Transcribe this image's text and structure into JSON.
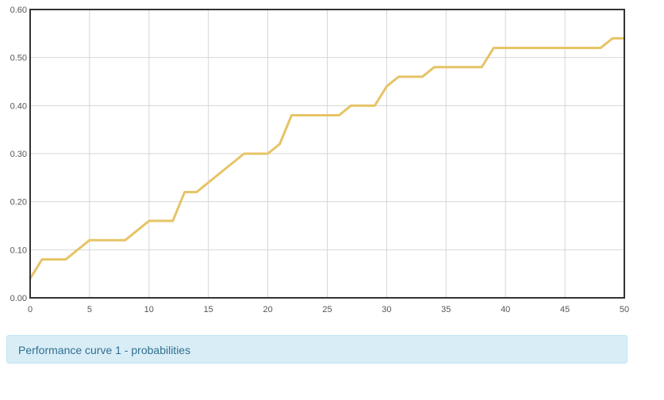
{
  "caption": "Performance curve 1 - probabilities",
  "chart_data": {
    "type": "line",
    "title": "",
    "xlabel": "",
    "ylabel": "",
    "xlim": [
      0,
      50
    ],
    "ylim": [
      0,
      0.6
    ],
    "grid": true,
    "x_ticks": [
      "0",
      "5",
      "10",
      "15",
      "20",
      "25",
      "30",
      "35",
      "40",
      "45",
      "50"
    ],
    "y_ticks": [
      "0.00",
      "0.10",
      "0.20",
      "0.30",
      "0.40",
      "0.50",
      "0.60"
    ],
    "series": [
      {
        "color": "#e6c466",
        "x": [
          0,
          1,
          2,
          3,
          4,
          5,
          6,
          7,
          8,
          9,
          10,
          11,
          12,
          13,
          14,
          15,
          16,
          17,
          18,
          19,
          20,
          21,
          22,
          23,
          24,
          25,
          26,
          27,
          28,
          29,
          30,
          31,
          32,
          33,
          34,
          35,
          36,
          37,
          38,
          39,
          40,
          41,
          42,
          43,
          44,
          45,
          46,
          47,
          48,
          49,
          50
        ],
        "y": [
          0.04,
          0.08,
          0.08,
          0.08,
          0.1,
          0.12,
          0.12,
          0.12,
          0.12,
          0.14,
          0.16,
          0.16,
          0.16,
          0.22,
          0.22,
          0.24,
          0.26,
          0.28,
          0.3,
          0.3,
          0.3,
          0.32,
          0.38,
          0.38,
          0.38,
          0.38,
          0.38,
          0.4,
          0.4,
          0.4,
          0.44,
          0.46,
          0.46,
          0.46,
          0.48,
          0.48,
          0.48,
          0.48,
          0.48,
          0.52,
          0.52,
          0.52,
          0.52,
          0.52,
          0.52,
          0.52,
          0.52,
          0.52,
          0.52,
          0.54,
          0.54
        ]
      }
    ]
  }
}
